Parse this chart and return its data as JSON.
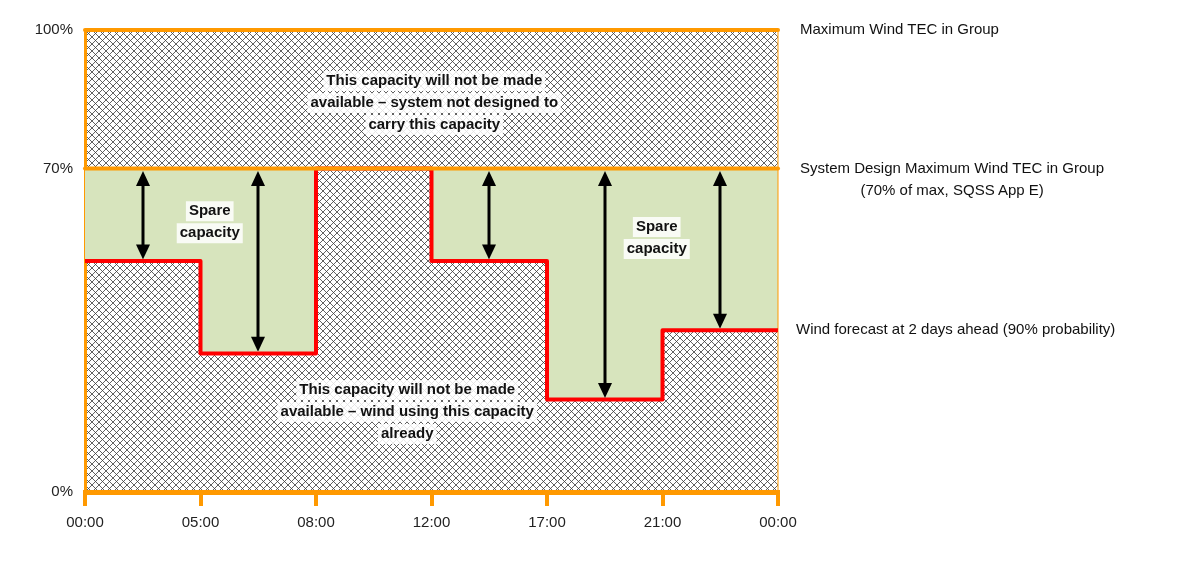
{
  "chart_data": {
    "type": "step",
    "categories": [
      "00:00",
      "05:00",
      "08:00",
      "12:00",
      "17:00",
      "21:00",
      "00:00"
    ],
    "series": [
      {
        "name": "Wind forecast at 2 days ahead (90% probability)",
        "color": "#ff0000",
        "values": [
          50,
          30,
          70,
          50,
          20,
          35,
          35
        ]
      }
    ],
    "ylim": [
      0,
      100
    ],
    "yticks": [
      {
        "value": 0,
        "label": "0%"
      },
      {
        "value": 70,
        "label": "70%"
      },
      {
        "value": 100,
        "label": "100%"
      }
    ],
    "grid": false,
    "legend": false,
    "marker": "none",
    "line_style": "solid",
    "ref_lines": [
      {
        "axis": "y",
        "value": 100,
        "label": "Maximum Wind TEC in Group",
        "color": "#ff9900"
      },
      {
        "axis": "y",
        "value": 70,
        "label": "System Design Maximum Wind TEC in Group\n(70% of max, SQSS App E)",
        "color": "#ff9900"
      }
    ],
    "bands": [
      {
        "axis": "y",
        "from": 0,
        "to": 70,
        "color": "#d7e4bd"
      }
    ],
    "annotations": [
      "This capacity will not be made available – system not designed to carry this capacity",
      "Spare capacity",
      "Spare capacity",
      "This capacity will not be made available – wind using this capacity already"
    ]
  }
}
